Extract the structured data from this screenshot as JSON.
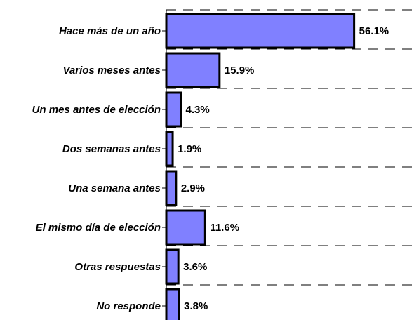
{
  "chart_data": {
    "type": "bar",
    "orientation": "horizontal",
    "categories": [
      "Hace más de un año",
      "Varios meses antes",
      "Un mes antes de elección",
      "Dos semanas antes",
      "Una semana antes",
      "El mismo día de elección",
      "Otras respuestas",
      "No responde"
    ],
    "values": [
      56.1,
      15.9,
      4.3,
      1.9,
      2.9,
      11.6,
      3.6,
      3.8
    ],
    "value_labels": [
      "56.1%",
      "15.9%",
      "4.3%",
      "1.9%",
      "2.9%",
      "11.6%",
      "3.6%",
      "3.8%"
    ],
    "color": "#8080ff",
    "xlim": [
      0,
      74
    ],
    "grid": true
  }
}
